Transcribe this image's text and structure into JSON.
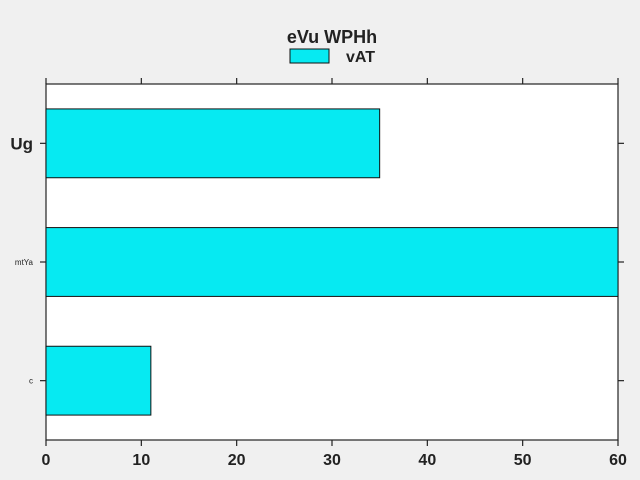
{
  "chart_data": {
    "type": "bar",
    "orientation": "horizontal",
    "title": "eVu WPHh",
    "xlabel": "",
    "ylabel": "",
    "categories": [
      "Ug",
      "mtYa",
      "c"
    ],
    "category_label_emphasis": [
      "large",
      "small",
      "small"
    ],
    "series": [
      {
        "name": "vAT",
        "values": [
          35,
          60,
          11
        ]
      }
    ],
    "xlim": [
      0,
      60
    ],
    "xticks": [
      0,
      10,
      20,
      30,
      40,
      50,
      60
    ],
    "grid": false,
    "legend_position": "top-center",
    "colors": {
      "bar_fill": "#06eaf2",
      "bar_stroke": "#111111",
      "plot_background": "#ffffff",
      "figure_background": "#f0f0f0",
      "axis": "#222222"
    }
  }
}
